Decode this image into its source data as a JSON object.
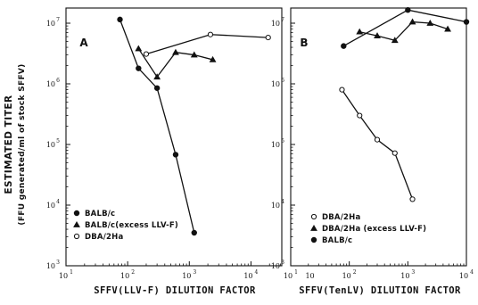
{
  "figure": {
    "y_axis_label": "ESTIMATED TITER",
    "y_axis_sublabel": "(FFU generated/ml of stock SFFV)"
  },
  "chart_data": [
    {
      "type": "line",
      "panel": "A",
      "xlabel": "SFFV(LLV-F) DILUTION FACTOR",
      "ylabel": "ESTIMATED TITER (FFU generated/ml of stock SFFV)",
      "x_scale": "log",
      "y_scale": "log",
      "xlim": [
        10,
        31623
      ],
      "ylim": [
        1000,
        17783000
      ],
      "x_tick_labels": [
        "10",
        "10",
        "10",
        "10",
        "10"
      ],
      "x_tick_exponents": [
        "1",
        "2",
        "3",
        "4",
        ""
      ],
      "y_tick_labels": [
        "10",
        "10",
        "10",
        "10",
        "10"
      ],
      "y_tick_exponents": [
        "3",
        "4",
        "5",
        "6",
        "7"
      ],
      "legend_position": "bottom-left",
      "series": [
        {
          "name": "BALB/c",
          "marker": "filled-circle",
          "x": [
            75,
            150,
            300,
            600,
            1200
          ],
          "y": [
            11500000,
            1800000,
            850000,
            68000,
            3500
          ]
        },
        {
          "name": "BALB/c(excess LLV-F)",
          "marker": "filled-triangle",
          "x": [
            150,
            300,
            600,
            1200,
            2400
          ],
          "y": [
            3800000,
            1300000,
            3300000,
            3000000,
            2500000
          ]
        },
        {
          "name": "DBA/2Ha",
          "marker": "open-circle",
          "x": [
            200,
            2200,
            19000
          ],
          "y": [
            3100000,
            6500000,
            5800000
          ]
        }
      ]
    },
    {
      "type": "line",
      "panel": "B",
      "xlabel": "SFFV(TenLV) DILUTION FACTOR",
      "ylabel": "",
      "x_scale": "log",
      "y_scale": "log",
      "xlim": [
        10,
        10000
      ],
      "ylim": [
        1000,
        17783000
      ],
      "x_tick_labels": [
        "10",
        "10",
        "10",
        "10"
      ],
      "x_tick_exponents": [
        "1",
        "2",
        "3",
        "4"
      ],
      "y_tick_labels": [
        "10",
        "10",
        "10",
        "10",
        "10"
      ],
      "y_tick_exponents": [
        "3",
        "4",
        "5",
        "6",
        "7"
      ],
      "legend_position": "bottom-left",
      "series": [
        {
          "name": "DBA/2Ha",
          "marker": "open-circle",
          "x": [
            75,
            150,
            300,
            600,
            1200
          ],
          "y": [
            800000,
            300000,
            120000,
            72000,
            12500
          ]
        },
        {
          "name": "DBA/2Ha (excess LLV-F)",
          "marker": "filled-triangle",
          "x": [
            150,
            300,
            600,
            1200,
            2400,
            4800
          ],
          "y": [
            7200000,
            6200000,
            5200000,
            10500000,
            10000000,
            8000000
          ]
        },
        {
          "name": "BALB/c",
          "marker": "filled-circle",
          "x": [
            80,
            1000,
            10000
          ],
          "y": [
            4200000,
            16500000,
            10500000
          ]
        }
      ]
    }
  ]
}
